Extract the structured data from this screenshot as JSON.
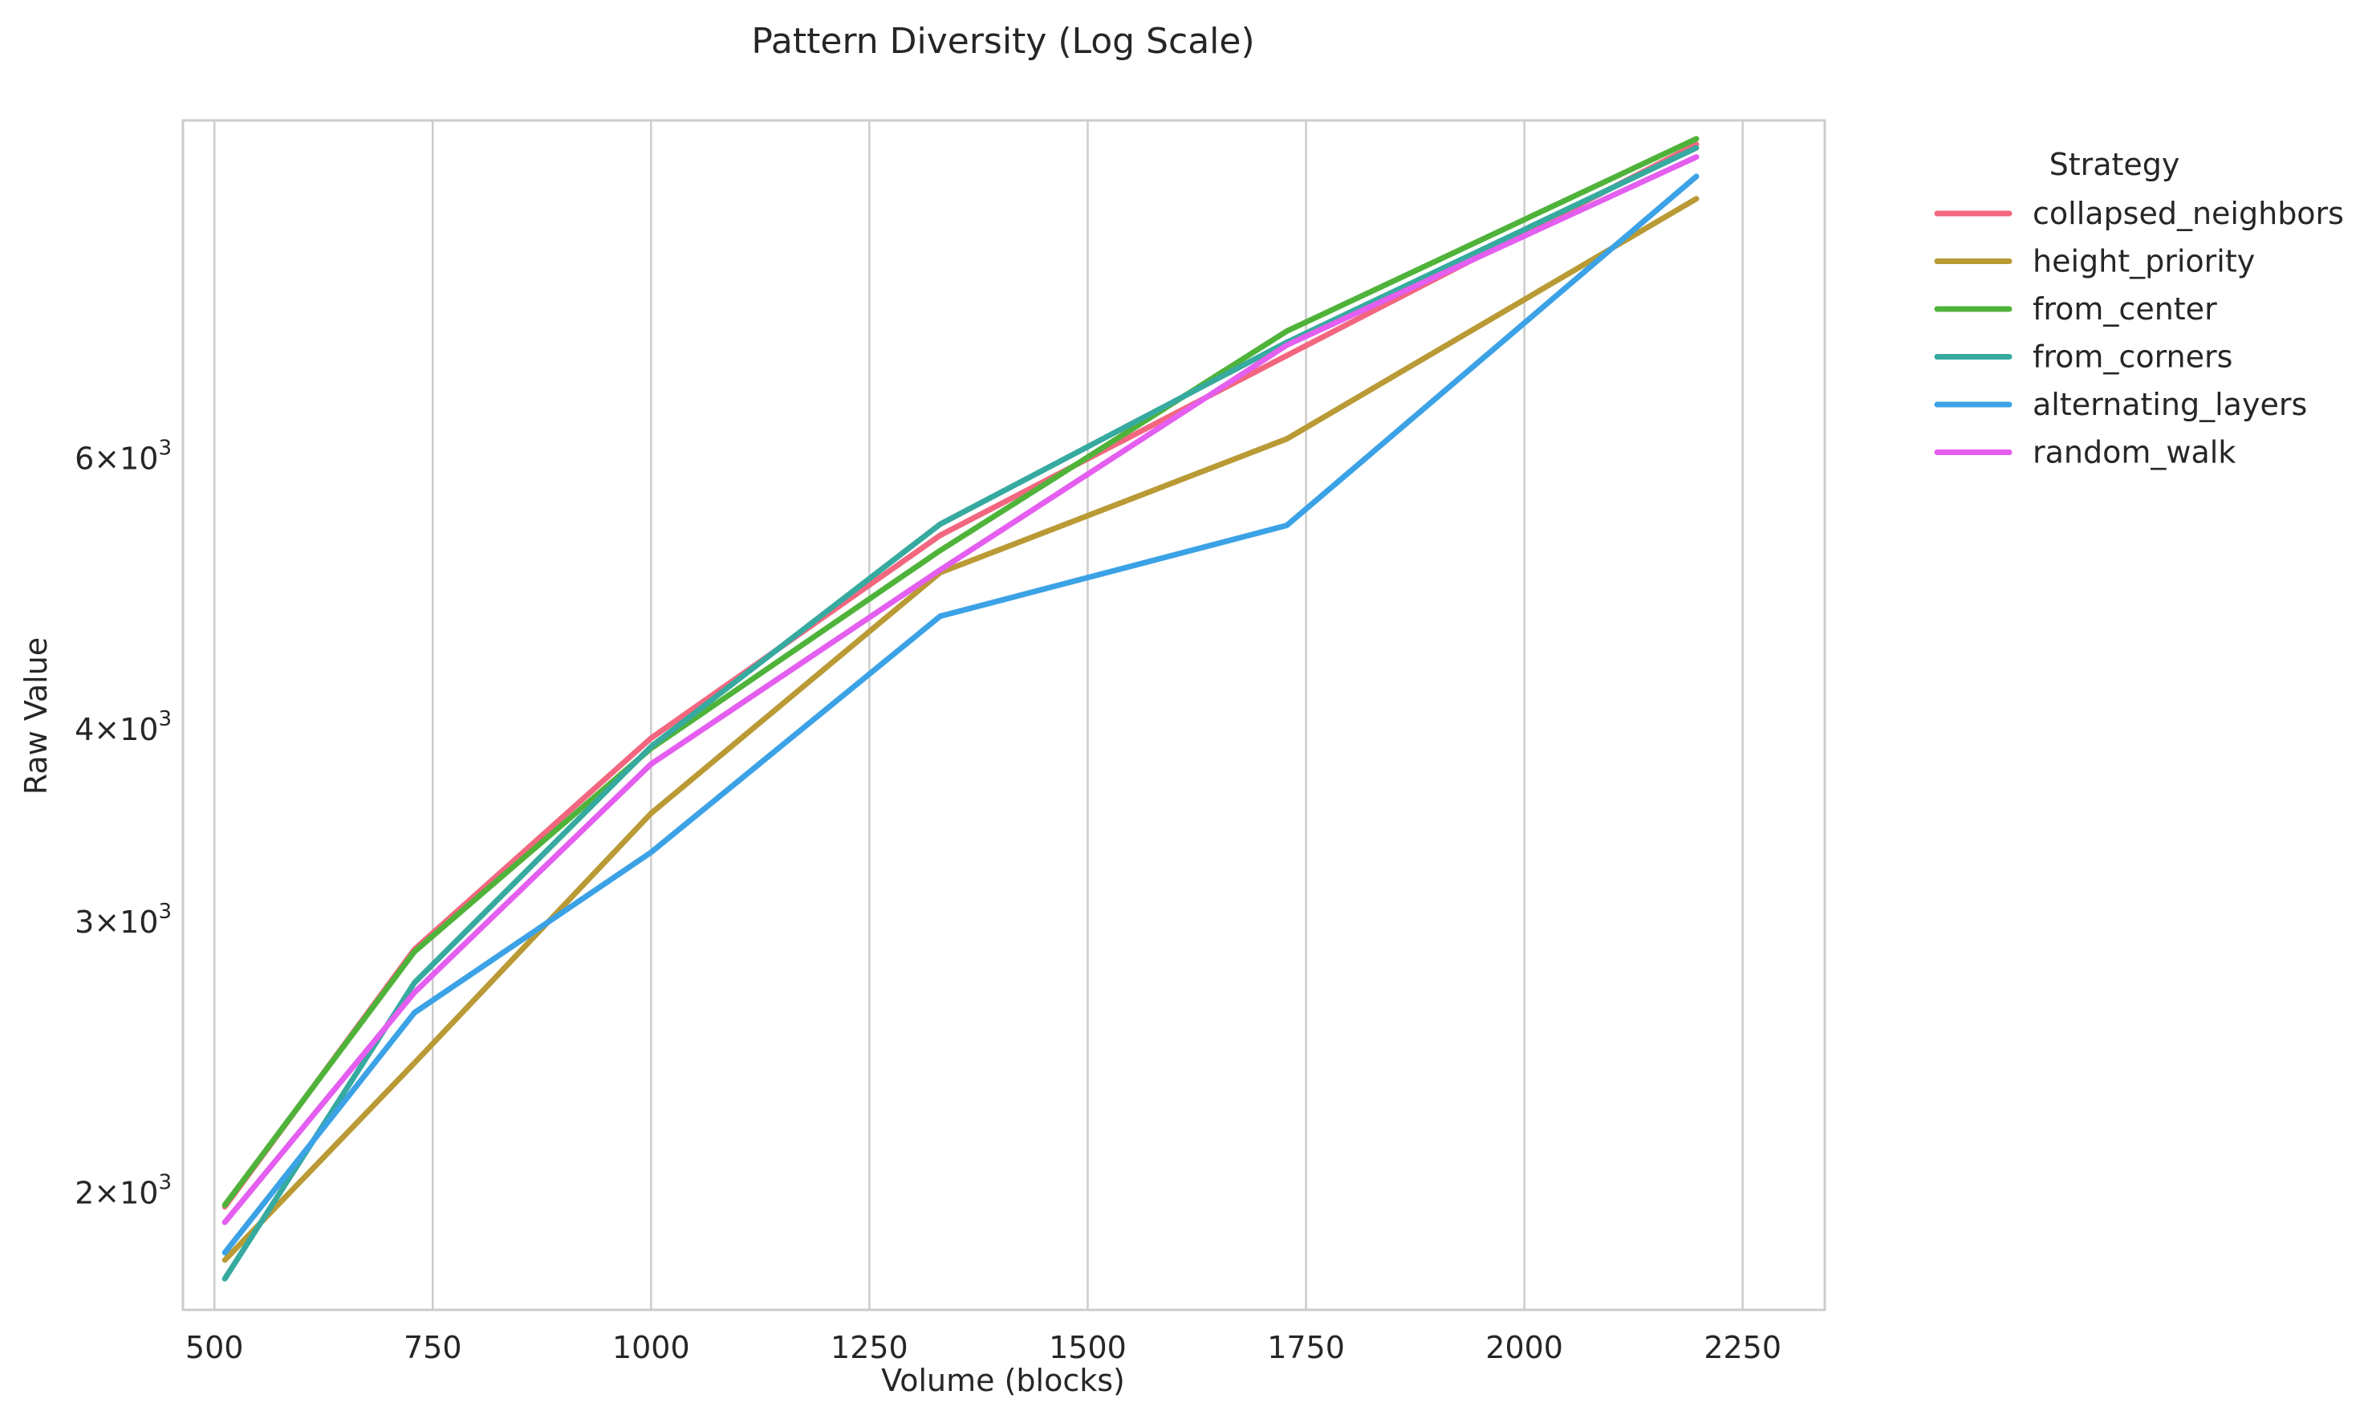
{
  "chart_data": {
    "type": "line",
    "title": "Pattern Diversity (Log Scale)",
    "xlabel": "Volume (blocks)",
    "ylabel": "Raw Value",
    "xscale": "linear",
    "yscale": "log",
    "xlim": [
      464,
      2344
    ],
    "ylim": [
      1680,
      9950
    ],
    "xticks": [
      500,
      750,
      1000,
      1250,
      1500,
      1750,
      2000,
      2250
    ],
    "xtick_labels": [
      "500",
      "750",
      "1000",
      "1250",
      "1500",
      "1750",
      "2000",
      "2250"
    ],
    "yticks": [
      2000,
      3000,
      4000,
      6000
    ],
    "ytick_labels": [
      {
        "mantissa": "2",
        "times": "×",
        "base": "10",
        "exp": "3"
      },
      {
        "mantissa": "3",
        "times": "×",
        "base": "10",
        "exp": "3"
      },
      {
        "mantissa": "4",
        "times": "×",
        "base": "10",
        "exp": "3"
      },
      {
        "mantissa": "6",
        "times": "×",
        "base": "10",
        "exp": "3"
      }
    ],
    "grid": "vertical",
    "legend": {
      "title": "Strategy",
      "placement": "outside-right"
    },
    "x": [
      512,
      729,
      1000,
      1331,
      1728,
      2197
    ],
    "series": [
      {
        "name": "collapsed_neighbors",
        "color": "#f2677f",
        "values": [
          1960,
          2880,
          3950,
          5350,
          7000,
          9600
        ]
      },
      {
        "name": "height_priority",
        "color": "#b99a35",
        "values": [
          1810,
          2430,
          3530,
          5060,
          6180,
          8850
        ]
      },
      {
        "name": "from_center",
        "color": "#4fb33a",
        "values": [
          1965,
          2870,
          3890,
          5230,
          7260,
          9680
        ]
      },
      {
        "name": "from_corners",
        "color": "#37aaa0",
        "values": [
          1760,
          2740,
          3900,
          5440,
          7140,
          9550
        ]
      },
      {
        "name": "alternating_layers",
        "color": "#3ba2e6",
        "values": [
          1830,
          2620,
          3330,
          4740,
          5430,
          9150
        ]
      },
      {
        "name": "random_walk",
        "color": "#e45ef0",
        "values": [
          1915,
          2700,
          3800,
          5080,
          7110,
          9420
        ]
      }
    ]
  }
}
